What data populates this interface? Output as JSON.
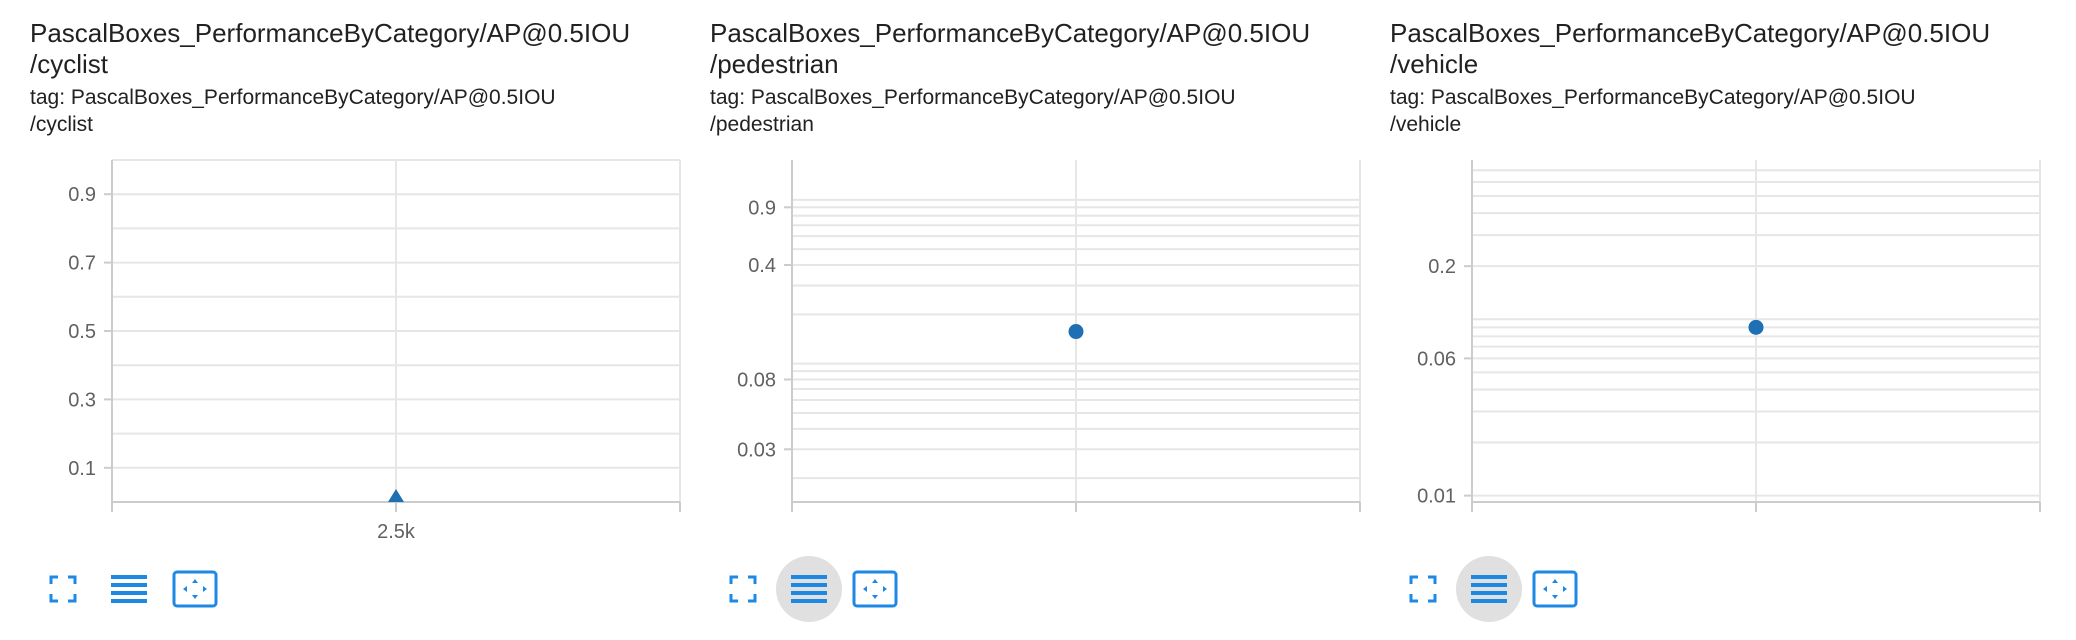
{
  "colors": {
    "series": "#1f6fb4",
    "grid": "#e6e6e6",
    "axis": "#cccccc",
    "icon": "#1e88e5",
    "button_active_bg": "#e0e0e0"
  },
  "cards": [
    {
      "title_line1": "PascalBoxes_PerformanceByCategory/AP@0.5IOU",
      "title_line2": "/cyclist",
      "tag_line1": "tag: PascalBoxes_PerformanceByCategory/AP@0.5IOU",
      "tag_line2": "/cyclist",
      "toolbar": {
        "fullscreen_icon": "fullscreen-icon",
        "data_table_icon": "data-table-icon",
        "fit_domain_icon": "fit-domain-icon",
        "data_table_active": false
      }
    },
    {
      "title_line1": "PascalBoxes_PerformanceByCategory/AP@0.5IOU",
      "title_line2": "/pedestrian",
      "tag_line1": "tag: PascalBoxes_PerformanceByCategory/AP@0.5IOU",
      "tag_line2": "/pedestrian",
      "toolbar": {
        "fullscreen_icon": "fullscreen-icon",
        "data_table_icon": "data-table-icon",
        "fit_domain_icon": "fit-domain-icon",
        "data_table_active": true
      }
    },
    {
      "title_line1": "PascalBoxes_PerformanceByCategory/AP@0.5IOU",
      "title_line2": "/vehicle",
      "tag_line1": "tag: PascalBoxes_PerformanceByCategory/AP@0.5IOU",
      "tag_line2": "/vehicle",
      "toolbar": {
        "fullscreen_icon": "fullscreen-icon",
        "data_table_icon": "data-table-icon",
        "fit_domain_icon": "fit-domain-icon",
        "data_table_active": true
      }
    }
  ],
  "chart_data": [
    {
      "type": "scatter",
      "title": "PascalBoxes_PerformanceByCategory/AP@0.5IOU/cyclist",
      "y_scale": "linear",
      "ylim": [
        0.0,
        1.0
      ],
      "y_ticks": [
        0.1,
        0.3,
        0.5,
        0.7,
        0.9
      ],
      "y_minor_ticks": [
        0.0,
        0.2,
        0.4,
        0.6,
        0.8,
        1.0
      ],
      "y_tick_labels": [
        "0.1",
        "0.3",
        "0.5",
        "0.7",
        "0.9"
      ],
      "xlim": [
        1500,
        3500
      ],
      "x_ticks": [
        1500,
        2500,
        3500
      ],
      "x_tick_labels": [
        "",
        "2.5k",
        ""
      ],
      "marker": "triangle",
      "points": [
        {
          "x": 2500,
          "y": 0.0
        }
      ],
      "grid": true
    },
    {
      "type": "scatter",
      "title": "PascalBoxes_PerformanceByCategory/AP@0.5IOU/pedestrian",
      "y_scale": "log",
      "ylim": [
        0.0143,
        1.75
      ],
      "y_ticks": [
        0.03,
        0.08,
        0.4,
        0.9
      ],
      "y_tick_labels": [
        "0.03",
        "0.08",
        "0.4",
        "0.9"
      ],
      "y_minor_ticks": [
        0.02,
        0.04,
        0.05,
        0.06,
        0.07,
        0.09,
        0.1,
        0.2,
        0.3,
        0.5,
        0.6,
        0.7,
        0.8,
        1.0
      ],
      "xlim": [
        1500,
        3500
      ],
      "x_ticks": [
        1500,
        2500,
        3500
      ],
      "x_tick_labels": [
        "",
        "",
        ""
      ],
      "marker": "circle",
      "points": [
        {
          "x": 2500,
          "y": 0.157
        }
      ],
      "grid": true
    },
    {
      "type": "scatter",
      "title": "PascalBoxes_PerformanceByCategory/AP@0.5IOU/vehicle",
      "y_scale": "log",
      "ylim": [
        0.0092,
        0.8
      ],
      "y_ticks": [
        0.01,
        0.06,
        0.2
      ],
      "y_tick_labels": [
        "0.01",
        "0.06",
        "0.2"
      ],
      "y_minor_ticks": [
        0.02,
        0.03,
        0.04,
        0.05,
        0.07,
        0.08,
        0.09,
        0.1,
        0.3,
        0.4,
        0.5,
        0.6,
        0.7
      ],
      "xlim": [
        1500,
        3500
      ],
      "x_ticks": [
        1500,
        2500,
        3500
      ],
      "x_tick_labels": [
        "",
        "",
        ""
      ],
      "marker": "circle",
      "points": [
        {
          "x": 2500,
          "y": 0.09
        }
      ],
      "grid": true
    }
  ]
}
